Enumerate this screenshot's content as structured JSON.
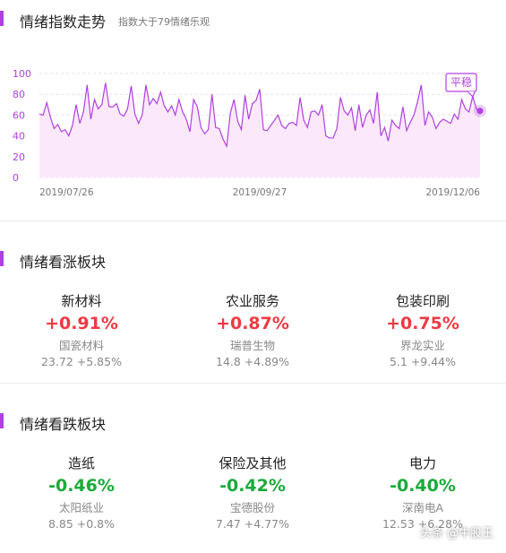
{
  "trend": {
    "title": "情绪指数走势",
    "subtitle": "指数大于79情绪乐观",
    "tag": "平稳"
  },
  "chart_data": {
    "type": "area",
    "y_ticks": [
      "100",
      "80",
      "60",
      "40",
      "20",
      "0"
    ],
    "ylim": [
      0,
      100
    ],
    "x_labels": [
      "2019/07/26",
      "2019/09/27",
      "2019/12/06"
    ],
    "series": [
      {
        "values": [
          61,
          60,
          72,
          58,
          47,
          51,
          44,
          46,
          40,
          50,
          70,
          52,
          63,
          89,
          56,
          75,
          66,
          70,
          91,
          68,
          68,
          71,
          61,
          59,
          66,
          88,
          61,
          52,
          60,
          89,
          70,
          76,
          71,
          82,
          69,
          63,
          69,
          60,
          75,
          63,
          56,
          44,
          75,
          68,
          48,
          42,
          46,
          80,
          48,
          47,
          37,
          30,
          62,
          75,
          54,
          46,
          79,
          56,
          71,
          74,
          85,
          46,
          45,
          50,
          55,
          60,
          50,
          47,
          52,
          53,
          50,
          77,
          55,
          48,
          63,
          64,
          60,
          70,
          40,
          38,
          38,
          47,
          77,
          64,
          60,
          67,
          45,
          70,
          48,
          60,
          65,
          52,
          82,
          40,
          48,
          35,
          55,
          50,
          47,
          68,
          45,
          53,
          60,
          73,
          89,
          50,
          63,
          58,
          47,
          53,
          56,
          54,
          52,
          61,
          56,
          75,
          66,
          63,
          78,
          66,
          64
        ]
      }
    ],
    "color": "#b040e0",
    "fill": "#fbe9fb"
  },
  "rise": {
    "title": "情绪看涨板块",
    "cards": [
      {
        "name": "新材料",
        "pct": "+0.91%",
        "stock": "国瓷材料",
        "price": "23.72  +5.85%"
      },
      {
        "name": "农业服务",
        "pct": "+0.87%",
        "stock": "瑞普生物",
        "price": "14.8  +4.89%"
      },
      {
        "name": "包装印刷",
        "pct": "+0.75%",
        "stock": "界龙实业",
        "price": "5.1  +9.44%"
      }
    ]
  },
  "fall": {
    "title": "情绪看跌板块",
    "cards": [
      {
        "name": "造纸",
        "pct": "-0.46%",
        "stock": "太阳纸业",
        "price": "8.85  +0.8%"
      },
      {
        "name": "保险及其他",
        "pct": "-0.42%",
        "stock": "宝德股份",
        "price": "7.47  +4.77%"
      },
      {
        "name": "电力",
        "pct": "-0.40%",
        "stock": "深南电A",
        "price": "12.53  +6.28%"
      }
    ]
  },
  "watermark": "头条 @牛股王",
  "colors": {
    "accent": "#b040e0",
    "up": "#ee3a43",
    "down": "#1aaa3a"
  }
}
